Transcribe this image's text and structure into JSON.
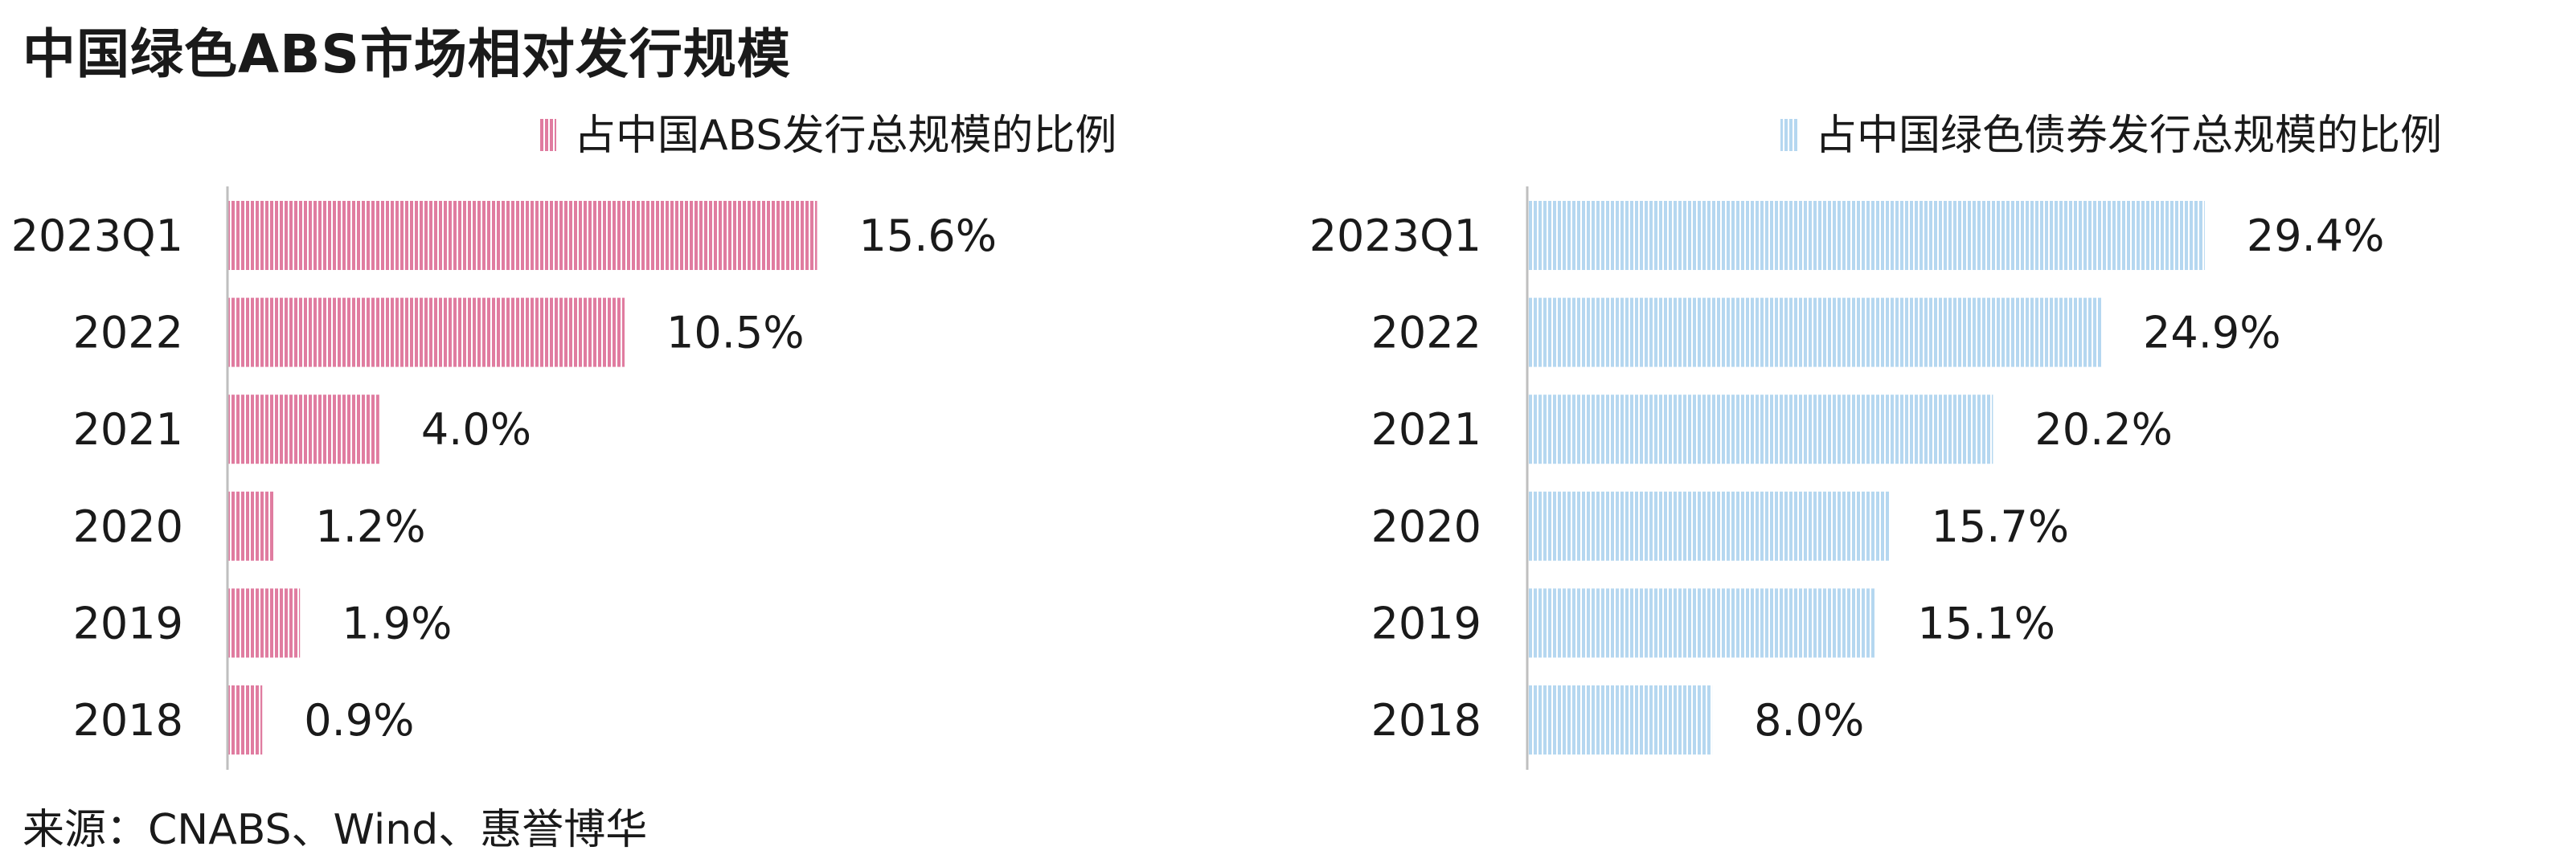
{
  "title": "中国绿色ABS市场相对发行规模",
  "source": "来源：CNABS、Wind、惠誉博华",
  "chart_data": [
    {
      "type": "bar",
      "orientation": "horizontal",
      "legend": "占中国ABS发行总规模的比例",
      "legend_position": "top",
      "categories": [
        "2023Q1",
        "2022",
        "2021",
        "2020",
        "2019",
        "2018"
      ],
      "values": [
        15.6,
        10.5,
        4.0,
        1.2,
        1.9,
        0.9
      ],
      "value_labels": [
        "15.6%",
        "10.5%",
        "4.0%",
        "1.2%",
        "1.9%",
        "0.9%"
      ],
      "unit": "%",
      "color": "#e07ca0",
      "xlim": [
        0,
        23
      ]
    },
    {
      "type": "bar",
      "orientation": "horizontal",
      "legend": "占中国绿色债券发行总规模的比例",
      "legend_position": "top",
      "categories": [
        "2023Q1",
        "2022",
        "2021",
        "2020",
        "2019",
        "2018"
      ],
      "values": [
        29.4,
        24.9,
        20.2,
        15.7,
        15.1,
        8.0
      ],
      "value_labels": [
        "29.4%",
        "24.9%",
        "20.2%",
        "15.7%",
        "15.1%",
        "8.0%"
      ],
      "unit": "%",
      "color": "#b5d7f0",
      "xlim": [
        0,
        42.5
      ]
    }
  ]
}
